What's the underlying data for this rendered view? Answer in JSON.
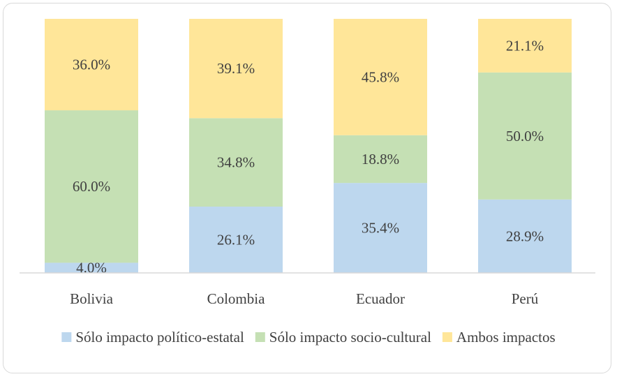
{
  "chart_data": {
    "type": "bar",
    "stacked": true,
    "normalized": true,
    "categories": [
      "Bolivia",
      "Colombia",
      "Ecuador",
      "Perú"
    ],
    "series": [
      {
        "name": "Sólo impacto político-estatal",
        "color": "#bdd7ee",
        "values": [
          4.0,
          26.1,
          35.4,
          28.9
        ],
        "labels": [
          "4.0%",
          "26.1%",
          "35.4%",
          "28.9%"
        ]
      },
      {
        "name": "Sólo impacto socio-cultural",
        "color": "#c5e0b4",
        "values": [
          60.0,
          34.8,
          18.8,
          50.0
        ],
        "labels": [
          "60.0%",
          "34.8%",
          "18.8%",
          "50.0%"
        ]
      },
      {
        "name": "Ambos impactos",
        "color": "#ffe699",
        "values": [
          36.0,
          39.1,
          45.8,
          21.1
        ],
        "labels": [
          "36.0%",
          "39.1%",
          "45.8%",
          "21.1%"
        ]
      }
    ],
    "ylim": [
      0,
      100
    ],
    "title": "",
    "xlabel": "",
    "ylabel": "",
    "legend_position": "bottom",
    "axis_color": "#d9d9d9",
    "text_color": "#404040"
  }
}
